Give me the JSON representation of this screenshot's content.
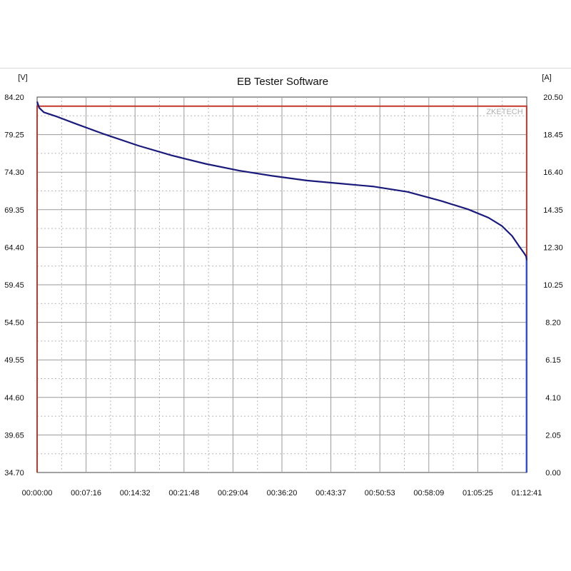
{
  "chart_data": {
    "type": "line",
    "title": "EB Tester Software",
    "y_left_unit": "[V]",
    "y_right_unit": "[A]",
    "watermark": "ZKETECH",
    "ylim_left": [
      34.7,
      84.2
    ],
    "ylim_right": [
      0.0,
      20.5
    ],
    "y_left_ticks": [
      "84.20",
      "79.25",
      "74.30",
      "69.35",
      "64.40",
      "59.45",
      "54.50",
      "49.55",
      "44.60",
      "39.65",
      "34.70"
    ],
    "y_right_ticks": [
      "20.50",
      "18.45",
      "16.40",
      "14.35",
      "12.30",
      "10.25",
      "8.20",
      "6.15",
      "4.10",
      "2.05",
      "0.00"
    ],
    "x_ticks": [
      "00:00:00",
      "00:07:16",
      "00:14:32",
      "00:21:48",
      "00:29:04",
      "00:36:20",
      "00:43:37",
      "00:50:53",
      "00:58:09",
      "01:05:25",
      "01:12:41"
    ],
    "grid": true,
    "series": [
      {
        "axis": "left",
        "color": "#1a1a7a",
        "x_minutes": [
          0,
          0.3,
          1,
          3,
          6,
          10,
          15,
          20,
          25,
          30,
          35,
          40,
          45,
          50,
          55,
          60,
          64,
          67,
          69,
          70.5,
          71.5,
          72.3,
          72.6,
          72.67,
          72.67
        ],
        "y_volts": [
          83.6,
          82.8,
          82.2,
          81.6,
          80.6,
          79.3,
          77.8,
          76.5,
          75.4,
          74.5,
          73.8,
          73.2,
          72.8,
          72.4,
          71.7,
          70.5,
          69.4,
          68.3,
          67.2,
          65.9,
          64.6,
          63.6,
          63.2,
          62.7,
          34.7
        ]
      },
      {
        "axis": "right",
        "color": "#c0392b",
        "x_minutes": [
          0,
          0,
          72.67,
          72.67
        ],
        "y_amps": [
          0.0,
          20.0,
          20.0,
          0.0
        ]
      }
    ]
  }
}
